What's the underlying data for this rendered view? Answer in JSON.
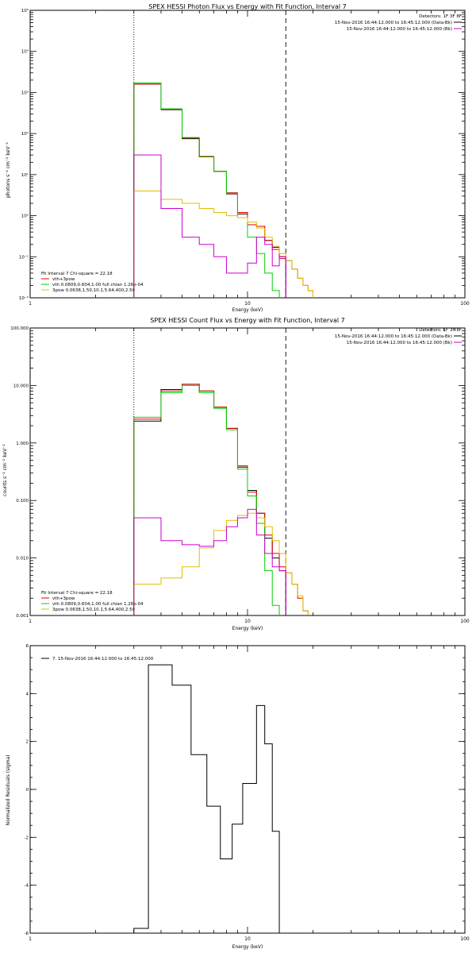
{
  "colors": {
    "data_black": "#000000",
    "total_fit_red": "#e00000",
    "vth_green": "#00d000",
    "pow_yellow": "#e0c000",
    "background_magenta": "#d000d0"
  },
  "chart_data": [
    {
      "type": "line",
      "title": "SPEX HESSI Photon Flux vs Energy with Fit Function, Interval 7",
      "xlabel": "Energy (keV)",
      "ylabel": "photons s⁻¹ cm⁻² keV⁻¹",
      "xscale": "log",
      "yscale": "log",
      "xlim": [
        1,
        100
      ],
      "ylim": [
        0.01,
        100000
      ],
      "xticks": [
        1,
        10,
        100
      ],
      "xtick_labels": [
        "1",
        "10",
        "100"
      ],
      "yticks": [
        0.01,
        0.1,
        1,
        10,
        100,
        1000,
        10000,
        100000
      ],
      "ytick_labels": [
        "10⁻²",
        "10⁻¹",
        "10⁰",
        "10¹",
        "10²",
        "10³",
        "10⁴",
        "10⁵"
      ],
      "vlines": [
        {
          "x": 3.0,
          "style": "dotted"
        },
        {
          "x": 15.0,
          "style": "dashed"
        }
      ],
      "legend_top_right": [
        "Detectors: 1F 3F 8F",
        "15-Nov-2016 16:44:12.000 to 16:45:12.000 (Data-Bk)",
        "15-Nov-2016 16:44:12.000 to 16:45:12.000 (Bk)"
      ],
      "legend_bottom_left": [
        "Fit Interval 7   Chi-square = 22.18",
        "vth+3pow",
        "vth 0.0809,0.604,1.00  full chian 1.26e-04",
        "3pow 0.0638,1.50,10.1,5.64,400,2.50"
      ],
      "bin_edges": [
        3.0,
        3.5,
        4.0,
        4.5,
        5.0,
        5.5,
        6.0,
        6.5,
        7.0,
        7.5,
        8.0,
        8.5,
        9.0,
        9.5,
        10.0,
        11.0,
        12.0,
        13.0,
        14.0,
        15.0,
        16.0,
        17.0,
        18.0,
        19.0,
        20.0,
        21.0
      ],
      "series": [
        {
          "name": "data",
          "color": "#000000",
          "values": [
            1600,
            1600,
            380,
            380,
            75,
            75,
            27,
            27,
            12,
            12,
            3.4,
            3.4,
            1.1,
            1.1,
            0.6,
            0.55,
            0.25,
            0.17,
            0.1,
            null,
            null,
            null,
            null,
            null,
            null
          ]
        },
        {
          "name": "vth+3pow",
          "color": "#e00000",
          "values": [
            1600,
            1600,
            390,
            390,
            78,
            78,
            27,
            27,
            12,
            12,
            3.6,
            3.6,
            1.2,
            1.2,
            0.6,
            0.55,
            0.25,
            0.15,
            0.09,
            0.08,
            0.05,
            0.03,
            0.02,
            0.015,
            null
          ]
        },
        {
          "name": "vth",
          "color": "#00d000",
          "values": [
            1700,
            1700,
            400,
            400,
            80,
            80,
            28,
            28,
            12,
            12,
            3.5,
            3.5,
            0.9,
            0.9,
            0.3,
            0.12,
            0.04,
            0.015,
            null,
            null,
            null,
            null,
            null,
            null,
            null
          ]
        },
        {
          "name": "3pow",
          "color": "#e0c000",
          "values": [
            4,
            4,
            2.5,
            2.5,
            2,
            2,
            1.5,
            1.5,
            1.2,
            1.2,
            1,
            1,
            0.9,
            0.9,
            0.7,
            0.5,
            0.3,
            0.18,
            0.12,
            0.08,
            0.05,
            0.03,
            0.02,
            0.015,
            null
          ]
        },
        {
          "name": "background",
          "color": "#d000d0",
          "values": [
            30,
            30,
            1.5,
            1.5,
            0.3,
            0.3,
            0.2,
            0.2,
            0.1,
            0.1,
            0.04,
            0.04,
            0.04,
            0.04,
            0.07,
            0.3,
            0.2,
            0.06,
            0.1,
            null,
            null,
            null,
            null,
            null,
            null
          ]
        }
      ]
    },
    {
      "type": "line",
      "title": "SPEX HESSI Count Flux vs Energy with Fit Function, Interval 7",
      "xlabel": "Energy (keV)",
      "ylabel": "counts s⁻¹ cm⁻² keV⁻¹",
      "xscale": "log",
      "yscale": "log",
      "xlim": [
        1,
        100
      ],
      "ylim": [
        0.001,
        100
      ],
      "xticks": [
        1,
        10,
        100
      ],
      "xtick_labels": [
        "1",
        "10",
        "100"
      ],
      "yticks": [
        0.001,
        0.01,
        0.1,
        1,
        10,
        100
      ],
      "ytick_labels": [
        "0.001",
        "0.010",
        "0.100",
        "1.000",
        "10.000",
        "100.000"
      ],
      "vlines": [
        {
          "x": 3.0,
          "style": "dotted"
        },
        {
          "x": 15.0,
          "style": "dashed"
        }
      ],
      "legend_top_right": [
        "Detectors: 1F 3F 8F",
        "15-Nov-2016 16:44:12.000 to 16:45:12.000 (Data-Bk)",
        "15-Nov-2016 16:44:12.000 to 16:45:12.000 (Bk)"
      ],
      "legend_bottom_left": [
        "Fit Interval 7   Chi-square = 22.18",
        "vth+3pow",
        "vth 0.0809,0.604,1.00  full chian 1.26e-04",
        "3pow 0.0638,1.50,10.1,5.64,400,2.50"
      ],
      "bin_edges": [
        3.0,
        3.5,
        4.0,
        4.5,
        5.0,
        5.5,
        6.0,
        6.5,
        7.0,
        7.5,
        8.0,
        8.5,
        9.0,
        9.5,
        10.0,
        11.0,
        12.0,
        13.0,
        14.0,
        15.0,
        16.0,
        17.0,
        18.0,
        19.0,
        20.0,
        21.0
      ],
      "series": [
        {
          "name": "data",
          "color": "#000000",
          "values": [
            2.4,
            2.4,
            8.5,
            8.5,
            10.5,
            10.5,
            8,
            8,
            4.2,
            4.2,
            1.8,
            1.8,
            0.38,
            0.38,
            0.15,
            0.06,
            0.022,
            0.01,
            0.006,
            null,
            null,
            null,
            null,
            null,
            null
          ]
        },
        {
          "name": "vth+3pow",
          "color": "#e00000",
          "values": [
            2.6,
            2.6,
            8,
            8,
            10.5,
            10.5,
            8,
            8,
            4.2,
            4.2,
            1.8,
            1.8,
            0.4,
            0.4,
            0.14,
            0.06,
            0.025,
            0.012,
            0.007,
            0.0055,
            0.0035,
            0.002,
            0.0012,
            null,
            null
          ]
        },
        {
          "name": "vth",
          "color": "#00d000",
          "values": [
            2.8,
            2.8,
            7.5,
            7.5,
            10,
            10,
            7.5,
            7.5,
            4,
            4,
            1.7,
            1.7,
            0.35,
            0.35,
            0.12,
            0.04,
            0.006,
            0.0015,
            null,
            null,
            null,
            null,
            null,
            null,
            null
          ]
        },
        {
          "name": "3pow",
          "color": "#e0c000",
          "values": [
            0.0035,
            0.0035,
            0.0045,
            0.0045,
            0.007,
            0.007,
            0.015,
            0.015,
            0.03,
            0.03,
            0.045,
            0.045,
            0.055,
            0.055,
            0.06,
            0.05,
            0.035,
            0.02,
            0.012,
            0.0055,
            0.0035,
            0.0022,
            0.0012,
            null,
            null
          ]
        },
        {
          "name": "background",
          "color": "#d000d0",
          "values": [
            0.05,
            0.05,
            0.02,
            0.02,
            0.017,
            0.017,
            0.016,
            0.016,
            0.02,
            0.02,
            0.035,
            0.035,
            0.05,
            0.05,
            0.07,
            0.025,
            0.012,
            0.007,
            0.006,
            null,
            null,
            null,
            null,
            null,
            null
          ]
        }
      ]
    },
    {
      "type": "line",
      "title": "",
      "xlabel": "Energy (keV)",
      "ylabel": "Normalized Residuals (sigma)",
      "xscale": "log",
      "yscale": "linear",
      "xlim": [
        1,
        100
      ],
      "ylim": [
        -6,
        6
      ],
      "xticks": [
        1,
        10,
        100
      ],
      "xtick_labels": [
        "1",
        "10",
        "100"
      ],
      "yticks": [
        -6,
        -4,
        -2,
        0,
        2,
        4,
        6
      ],
      "ytick_labels": [
        "-6",
        "-4",
        "-2",
        "0",
        "2",
        "4",
        "6"
      ],
      "legend_top_left": [
        "7. 15-Nov-2016 16:44:12.000 to 16:45:12.000"
      ],
      "bin_edges": [
        3.0,
        3.5,
        4.0,
        4.5,
        5.0,
        5.5,
        6.0,
        6.5,
        7.0,
        7.5,
        8.0,
        8.5,
        9.0,
        9.5,
        10.0,
        11.0,
        12.0,
        13.0,
        14.0,
        15.0
      ],
      "series": [
        {
          "name": "residuals",
          "color": "#000000",
          "values": [
            -5.8,
            5.2,
            5.2,
            4.35,
            4.35,
            1.45,
            1.45,
            -0.7,
            -0.7,
            -2.9,
            -2.9,
            -1.45,
            -1.45,
            0.25,
            0.25,
            3.5,
            1.9,
            -1.75,
            null
          ]
        }
      ]
    }
  ]
}
